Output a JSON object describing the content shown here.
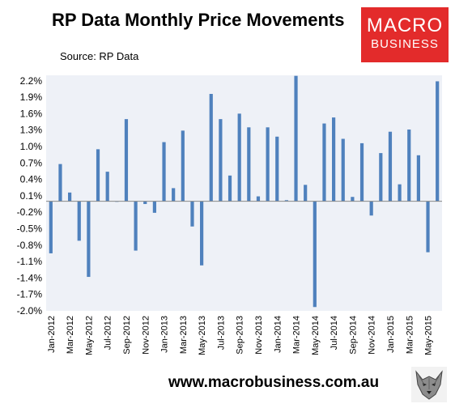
{
  "header": {
    "title": "RP Data Monthly Price Movements",
    "source": "Source: RP Data"
  },
  "logo": {
    "line1": "MACRO",
    "line2": "BUSINESS",
    "color": "#e32b2b"
  },
  "footer": {
    "url": "www.macrobusiness.com.au",
    "icon": "wolf-icon"
  },
  "chart_data": {
    "type": "bar",
    "title": "RP Data Monthly Price Movements",
    "bar_color": "#4f81bd",
    "plot_background": "#eef1f7",
    "ylim": [
      -2.0,
      2.3
    ],
    "yticks": [
      "2.2%",
      "1.9%",
      "1.6%",
      "1.3%",
      "1.0%",
      "0.7%",
      "0.4%",
      "0.1%",
      "-0.2%",
      "-0.5%",
      "-0.8%",
      "-1.1%",
      "-1.4%",
      "-1.7%",
      "-2.0%"
    ],
    "ytick_values": [
      2.2,
      1.9,
      1.6,
      1.3,
      1.0,
      0.7,
      0.4,
      0.1,
      -0.2,
      -0.5,
      -0.8,
      -1.1,
      -1.4,
      -1.7,
      -2.0
    ],
    "grid": false,
    "categories": [
      "Jan-2012",
      "Feb-2012",
      "Mar-2012",
      "Apr-2012",
      "May-2012",
      "Jun-2012",
      "Jul-2012",
      "Aug-2012",
      "Sep-2012",
      "Oct-2012",
      "Nov-2012",
      "Dec-2012",
      "Jan-2013",
      "Feb-2013",
      "Mar-2013",
      "Apr-2013",
      "May-2013",
      "Jun-2013",
      "Jul-2013",
      "Aug-2013",
      "Sep-2013",
      "Oct-2013",
      "Nov-2013",
      "Dec-2013",
      "Jan-2014",
      "Feb-2014",
      "Mar-2014",
      "Apr-2014",
      "May-2014",
      "Jun-2014",
      "Jul-2014",
      "Aug-2014",
      "Sep-2014",
      "Oct-2014",
      "Nov-2014",
      "Dec-2014",
      "Jan-2015",
      "Feb-2015",
      "Mar-2015",
      "Apr-2015",
      "May-2015",
      "Jun-2015"
    ],
    "tick_labels": [
      "Jan-2012",
      "",
      "Mar-2012",
      "",
      "May-2012",
      "",
      "Jul-2012",
      "",
      "Sep-2012",
      "",
      "Nov-2012",
      "",
      "Jan-2013",
      "",
      "Mar-2013",
      "",
      "May-2013",
      "",
      "Jul-2013",
      "",
      "Sep-2013",
      "",
      "Nov-2013",
      "",
      "Jan-2014",
      "",
      "Mar-2014",
      "",
      "May-2014",
      "",
      "Jul-2014",
      "",
      "Sep-2014",
      "",
      "Nov-2014",
      "",
      "Jan-2015",
      "",
      "Mar-2015",
      "",
      "May-2015",
      ""
    ],
    "values": [
      -0.95,
      0.68,
      0.16,
      -0.72,
      -1.38,
      0.95,
      0.54,
      -0.01,
      1.5,
      -0.9,
      -0.05,
      -0.21,
      1.08,
      0.24,
      1.29,
      -0.46,
      -1.17,
      1.96,
      1.5,
      0.47,
      1.6,
      1.35,
      0.09,
      1.35,
      1.18,
      0.02,
      2.29,
      0.3,
      -1.93,
      1.42,
      1.53,
      1.14,
      0.08,
      1.06,
      -0.26,
      0.88,
      1.27,
      0.31,
      1.31,
      0.84,
      -0.93,
      2.19
    ]
  }
}
